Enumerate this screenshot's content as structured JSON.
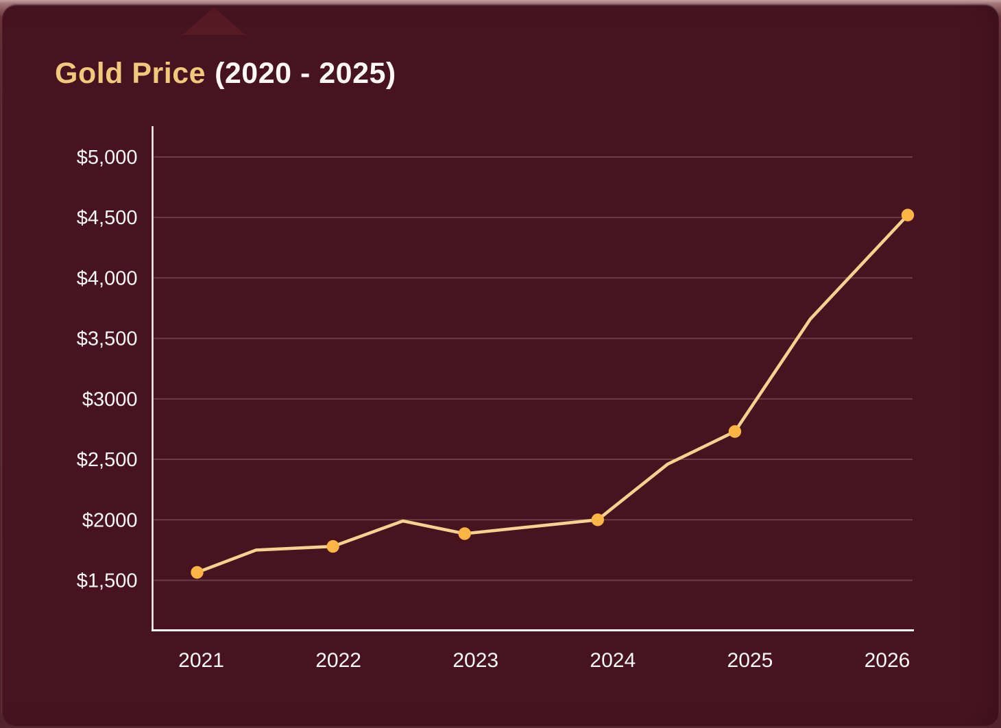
{
  "title": {
    "accent": "Gold Price",
    "suffix": "(2020 - 2025)"
  },
  "chart_data": {
    "type": "line",
    "title": "Gold Price (2020 - 2025)",
    "xlabel": "",
    "ylabel": "",
    "grid": true,
    "legend_visible": false,
    "x_range": [
      2020.645,
      2026.185
    ],
    "y_range": [
      1086,
      5255
    ],
    "x_tick_positions": [
      2021,
      2022,
      2023,
      2024,
      2025,
      2026
    ],
    "x_tick_labels": [
      "2021",
      "2022",
      "2023",
      "2024",
      "2025",
      "2026"
    ],
    "y_tick_values": [
      5000,
      4500,
      4000,
      3500,
      3000,
      2500,
      2000,
      1500
    ],
    "y_tick_labels": [
      "$5,000",
      "$4,500",
      "$4,000",
      "$3,500",
      "$3000",
      "$2,500",
      "$2000",
      "$1,500"
    ],
    "series": [
      {
        "name": "Gold Price",
        "points": [
          {
            "x": 2020.97,
            "value": 1565,
            "marker": true
          },
          {
            "x": 2021.4,
            "value": 1750,
            "marker": false
          },
          {
            "x": 2021.96,
            "value": 1780,
            "marker": true
          },
          {
            "x": 2022.47,
            "value": 1990,
            "marker": false
          },
          {
            "x": 2022.92,
            "value": 1885,
            "marker": true
          },
          {
            "x": 2023.89,
            "value": 2000,
            "marker": true
          },
          {
            "x": 2024.4,
            "value": 2460,
            "marker": false
          },
          {
            "x": 2024.89,
            "value": 2730,
            "marker": true
          },
          {
            "x": 2025.44,
            "value": 3660,
            "marker": false
          },
          {
            "x": 2026.15,
            "value": 4520,
            "marker": true
          }
        ]
      }
    ],
    "colors": {
      "card_background": "#471320",
      "line": "#f5d28f",
      "marker": "#fbb544",
      "axis": "#ffffff",
      "gridline": "rgba(255,228,225,0.20)",
      "tick_text": "#fdfbfa",
      "title_accent": "#f2c87c",
      "title_text": "#fbf8f6"
    }
  }
}
